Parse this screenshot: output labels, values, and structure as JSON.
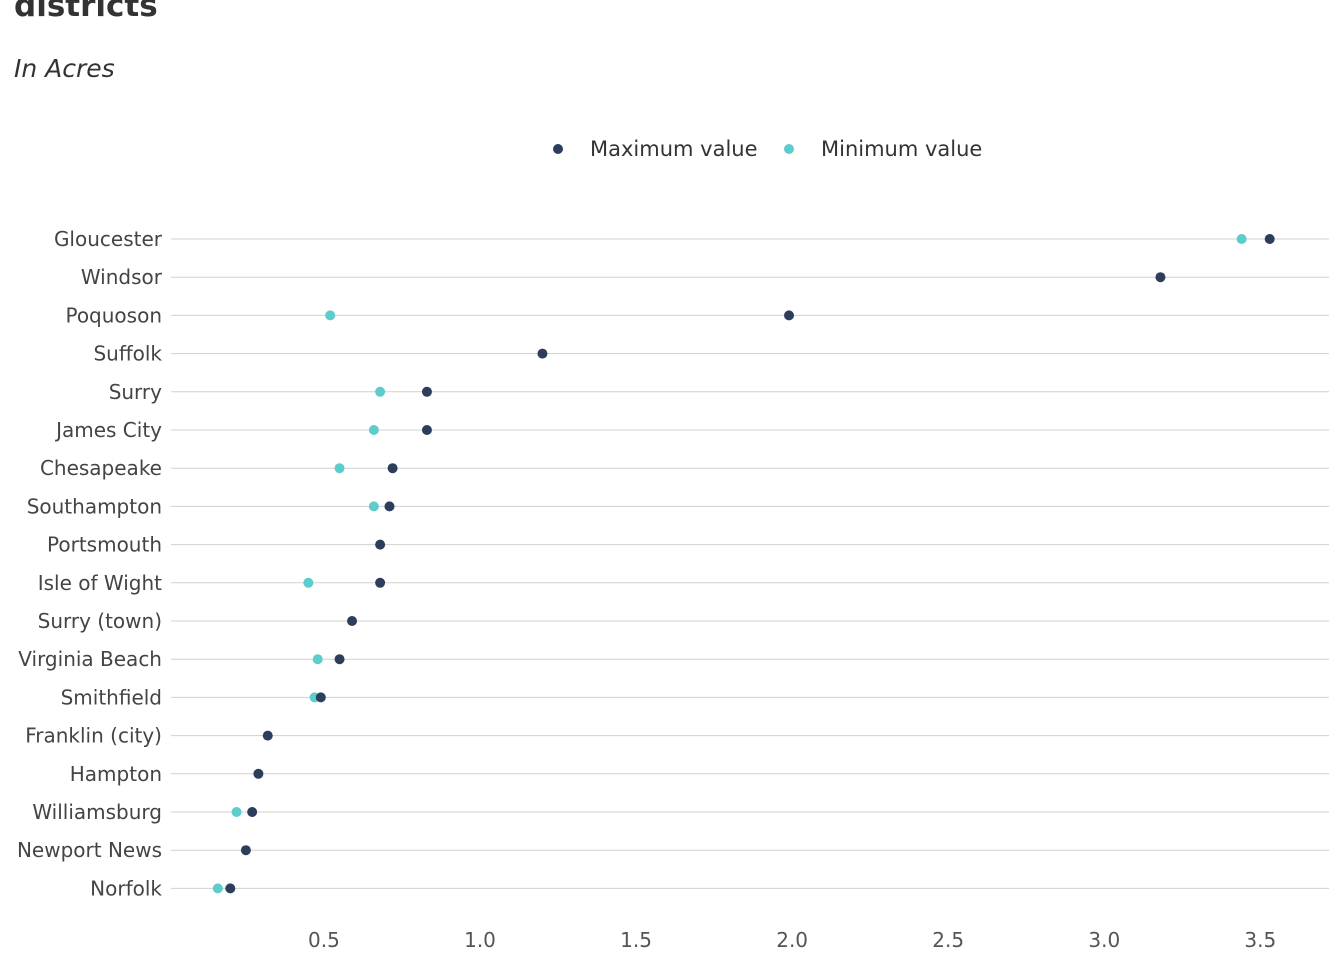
{
  "chart_data": {
    "type": "scatter",
    "title": "districts",
    "subtitle": "In Acres",
    "categories": [
      "Gloucester",
      "Windsor",
      "Poquoson",
      "Suffolk",
      "Surry",
      "James City",
      "Chesapeake",
      "Southampton",
      "Portsmouth",
      "Isle of Wight",
      "Surry (town)",
      "Virginia Beach",
      "Smithfield",
      "Franklin (city)",
      "Hampton",
      "Williamsburg",
      "Newport News",
      "Norfolk"
    ],
    "series": [
      {
        "name": "Maximum value",
        "color": "#2c3e5c",
        "values": [
          3.53,
          3.18,
          1.99,
          1.2,
          0.83,
          0.83,
          0.72,
          0.71,
          0.68,
          0.68,
          0.59,
          0.55,
          0.49,
          0.32,
          0.29,
          0.27,
          0.25,
          0.2
        ]
      },
      {
        "name": "Minimum value",
        "color": "#5ccccc",
        "values": [
          3.44,
          null,
          0.52,
          null,
          0.68,
          0.66,
          0.55,
          0.66,
          null,
          0.45,
          null,
          0.48,
          0.47,
          null,
          null,
          0.22,
          null,
          0.16
        ]
      }
    ],
    "x_ticks": [
      "0.5",
      "1.0",
      "1.5",
      "2.0",
      "2.5",
      "3.0",
      "3.5"
    ],
    "x_tick_values": [
      0.5,
      1.0,
      1.5,
      2.0,
      2.5,
      3.0,
      3.5
    ],
    "xlim": [
      0.01,
      3.72
    ],
    "xlabel": "",
    "ylabel": "",
    "grid": "horizontal",
    "legend_position": "top"
  }
}
